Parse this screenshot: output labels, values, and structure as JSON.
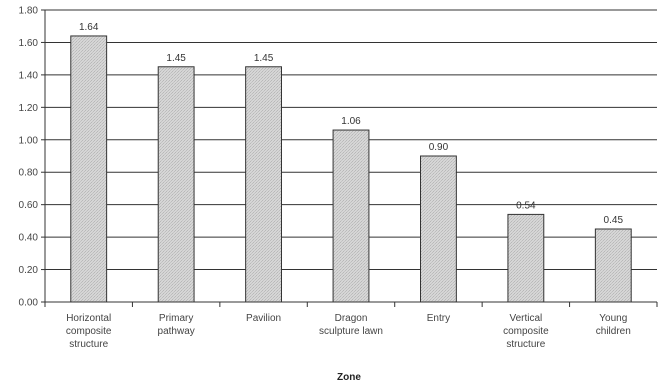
{
  "chart_data": {
    "type": "bar",
    "categories": [
      [
        "Horizontal",
        "composite",
        "structure"
      ],
      [
        "Primary",
        "pathway"
      ],
      [
        "Pavilion"
      ],
      [
        "Dragon",
        "sculpture lawn"
      ],
      [
        "Entry"
      ],
      [
        "Vertical",
        "composite",
        "structure"
      ],
      [
        "Young",
        "children"
      ]
    ],
    "values": [
      1.64,
      1.45,
      1.45,
      1.06,
      0.9,
      0.54,
      0.45
    ],
    "data_labels": [
      "1.64",
      "1.45",
      "1.45",
      "1.06",
      "0.90",
      "0.54",
      "0.45"
    ],
    "xlabel": "Zone",
    "ylabel": "",
    "ylim": [
      0,
      1.8
    ],
    "yticks": [
      "0.00",
      "0.20",
      "0.40",
      "0.60",
      "0.80",
      "1.00",
      "1.20",
      "1.40",
      "1.60",
      "1.80"
    ],
    "grid": "horizontal",
    "legend": "none",
    "colors": {
      "bar_fill": "#d2d2d2",
      "bar_stroke": "#333333",
      "grid": "#333333",
      "axis": "#333333"
    }
  }
}
